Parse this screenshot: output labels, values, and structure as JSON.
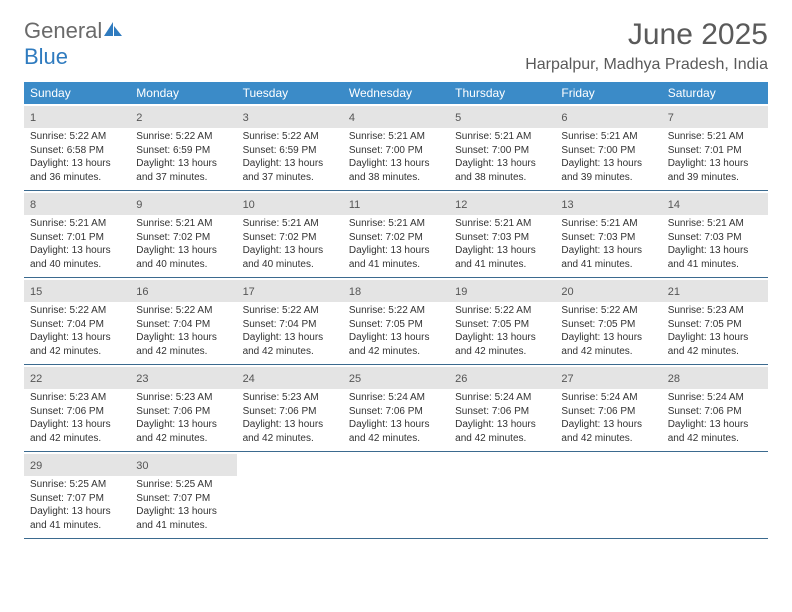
{
  "logo": {
    "text_gray": "General",
    "text_blue": "Blue"
  },
  "title": "June 2025",
  "location": "Harpalpur, Madhya Pradesh, India",
  "colors": {
    "header_bg": "#3b8bc8",
    "header_text": "#ffffff",
    "daynum_bg": "#e4e4e4",
    "row_border": "#3b6a8f",
    "title_color": "#5a5a5a"
  },
  "day_headers": [
    "Sunday",
    "Monday",
    "Tuesday",
    "Wednesday",
    "Thursday",
    "Friday",
    "Saturday"
  ],
  "weeks": [
    [
      {
        "n": "1",
        "sr": "Sunrise: 5:22 AM",
        "ss": "Sunset: 6:58 PM",
        "d1": "Daylight: 13 hours",
        "d2": "and 36 minutes."
      },
      {
        "n": "2",
        "sr": "Sunrise: 5:22 AM",
        "ss": "Sunset: 6:59 PM",
        "d1": "Daylight: 13 hours",
        "d2": "and 37 minutes."
      },
      {
        "n": "3",
        "sr": "Sunrise: 5:22 AM",
        "ss": "Sunset: 6:59 PM",
        "d1": "Daylight: 13 hours",
        "d2": "and 37 minutes."
      },
      {
        "n": "4",
        "sr": "Sunrise: 5:21 AM",
        "ss": "Sunset: 7:00 PM",
        "d1": "Daylight: 13 hours",
        "d2": "and 38 minutes."
      },
      {
        "n": "5",
        "sr": "Sunrise: 5:21 AM",
        "ss": "Sunset: 7:00 PM",
        "d1": "Daylight: 13 hours",
        "d2": "and 38 minutes."
      },
      {
        "n": "6",
        "sr": "Sunrise: 5:21 AM",
        "ss": "Sunset: 7:00 PM",
        "d1": "Daylight: 13 hours",
        "d2": "and 39 minutes."
      },
      {
        "n": "7",
        "sr": "Sunrise: 5:21 AM",
        "ss": "Sunset: 7:01 PM",
        "d1": "Daylight: 13 hours",
        "d2": "and 39 minutes."
      }
    ],
    [
      {
        "n": "8",
        "sr": "Sunrise: 5:21 AM",
        "ss": "Sunset: 7:01 PM",
        "d1": "Daylight: 13 hours",
        "d2": "and 40 minutes."
      },
      {
        "n": "9",
        "sr": "Sunrise: 5:21 AM",
        "ss": "Sunset: 7:02 PM",
        "d1": "Daylight: 13 hours",
        "d2": "and 40 minutes."
      },
      {
        "n": "10",
        "sr": "Sunrise: 5:21 AM",
        "ss": "Sunset: 7:02 PM",
        "d1": "Daylight: 13 hours",
        "d2": "and 40 minutes."
      },
      {
        "n": "11",
        "sr": "Sunrise: 5:21 AM",
        "ss": "Sunset: 7:02 PM",
        "d1": "Daylight: 13 hours",
        "d2": "and 41 minutes."
      },
      {
        "n": "12",
        "sr": "Sunrise: 5:21 AM",
        "ss": "Sunset: 7:03 PM",
        "d1": "Daylight: 13 hours",
        "d2": "and 41 minutes."
      },
      {
        "n": "13",
        "sr": "Sunrise: 5:21 AM",
        "ss": "Sunset: 7:03 PM",
        "d1": "Daylight: 13 hours",
        "d2": "and 41 minutes."
      },
      {
        "n": "14",
        "sr": "Sunrise: 5:21 AM",
        "ss": "Sunset: 7:03 PM",
        "d1": "Daylight: 13 hours",
        "d2": "and 41 minutes."
      }
    ],
    [
      {
        "n": "15",
        "sr": "Sunrise: 5:22 AM",
        "ss": "Sunset: 7:04 PM",
        "d1": "Daylight: 13 hours",
        "d2": "and 42 minutes."
      },
      {
        "n": "16",
        "sr": "Sunrise: 5:22 AM",
        "ss": "Sunset: 7:04 PM",
        "d1": "Daylight: 13 hours",
        "d2": "and 42 minutes."
      },
      {
        "n": "17",
        "sr": "Sunrise: 5:22 AM",
        "ss": "Sunset: 7:04 PM",
        "d1": "Daylight: 13 hours",
        "d2": "and 42 minutes."
      },
      {
        "n": "18",
        "sr": "Sunrise: 5:22 AM",
        "ss": "Sunset: 7:05 PM",
        "d1": "Daylight: 13 hours",
        "d2": "and 42 minutes."
      },
      {
        "n": "19",
        "sr": "Sunrise: 5:22 AM",
        "ss": "Sunset: 7:05 PM",
        "d1": "Daylight: 13 hours",
        "d2": "and 42 minutes."
      },
      {
        "n": "20",
        "sr": "Sunrise: 5:22 AM",
        "ss": "Sunset: 7:05 PM",
        "d1": "Daylight: 13 hours",
        "d2": "and 42 minutes."
      },
      {
        "n": "21",
        "sr": "Sunrise: 5:23 AM",
        "ss": "Sunset: 7:05 PM",
        "d1": "Daylight: 13 hours",
        "d2": "and 42 minutes."
      }
    ],
    [
      {
        "n": "22",
        "sr": "Sunrise: 5:23 AM",
        "ss": "Sunset: 7:06 PM",
        "d1": "Daylight: 13 hours",
        "d2": "and 42 minutes."
      },
      {
        "n": "23",
        "sr": "Sunrise: 5:23 AM",
        "ss": "Sunset: 7:06 PM",
        "d1": "Daylight: 13 hours",
        "d2": "and 42 minutes."
      },
      {
        "n": "24",
        "sr": "Sunrise: 5:23 AM",
        "ss": "Sunset: 7:06 PM",
        "d1": "Daylight: 13 hours",
        "d2": "and 42 minutes."
      },
      {
        "n": "25",
        "sr": "Sunrise: 5:24 AM",
        "ss": "Sunset: 7:06 PM",
        "d1": "Daylight: 13 hours",
        "d2": "and 42 minutes."
      },
      {
        "n": "26",
        "sr": "Sunrise: 5:24 AM",
        "ss": "Sunset: 7:06 PM",
        "d1": "Daylight: 13 hours",
        "d2": "and 42 minutes."
      },
      {
        "n": "27",
        "sr": "Sunrise: 5:24 AM",
        "ss": "Sunset: 7:06 PM",
        "d1": "Daylight: 13 hours",
        "d2": "and 42 minutes."
      },
      {
        "n": "28",
        "sr": "Sunrise: 5:24 AM",
        "ss": "Sunset: 7:06 PM",
        "d1": "Daylight: 13 hours",
        "d2": "and 42 minutes."
      }
    ],
    [
      {
        "n": "29",
        "sr": "Sunrise: 5:25 AM",
        "ss": "Sunset: 7:07 PM",
        "d1": "Daylight: 13 hours",
        "d2": "and 41 minutes."
      },
      {
        "n": "30",
        "sr": "Sunrise: 5:25 AM",
        "ss": "Sunset: 7:07 PM",
        "d1": "Daylight: 13 hours",
        "d2": "and 41 minutes."
      },
      null,
      null,
      null,
      null,
      null
    ]
  ]
}
